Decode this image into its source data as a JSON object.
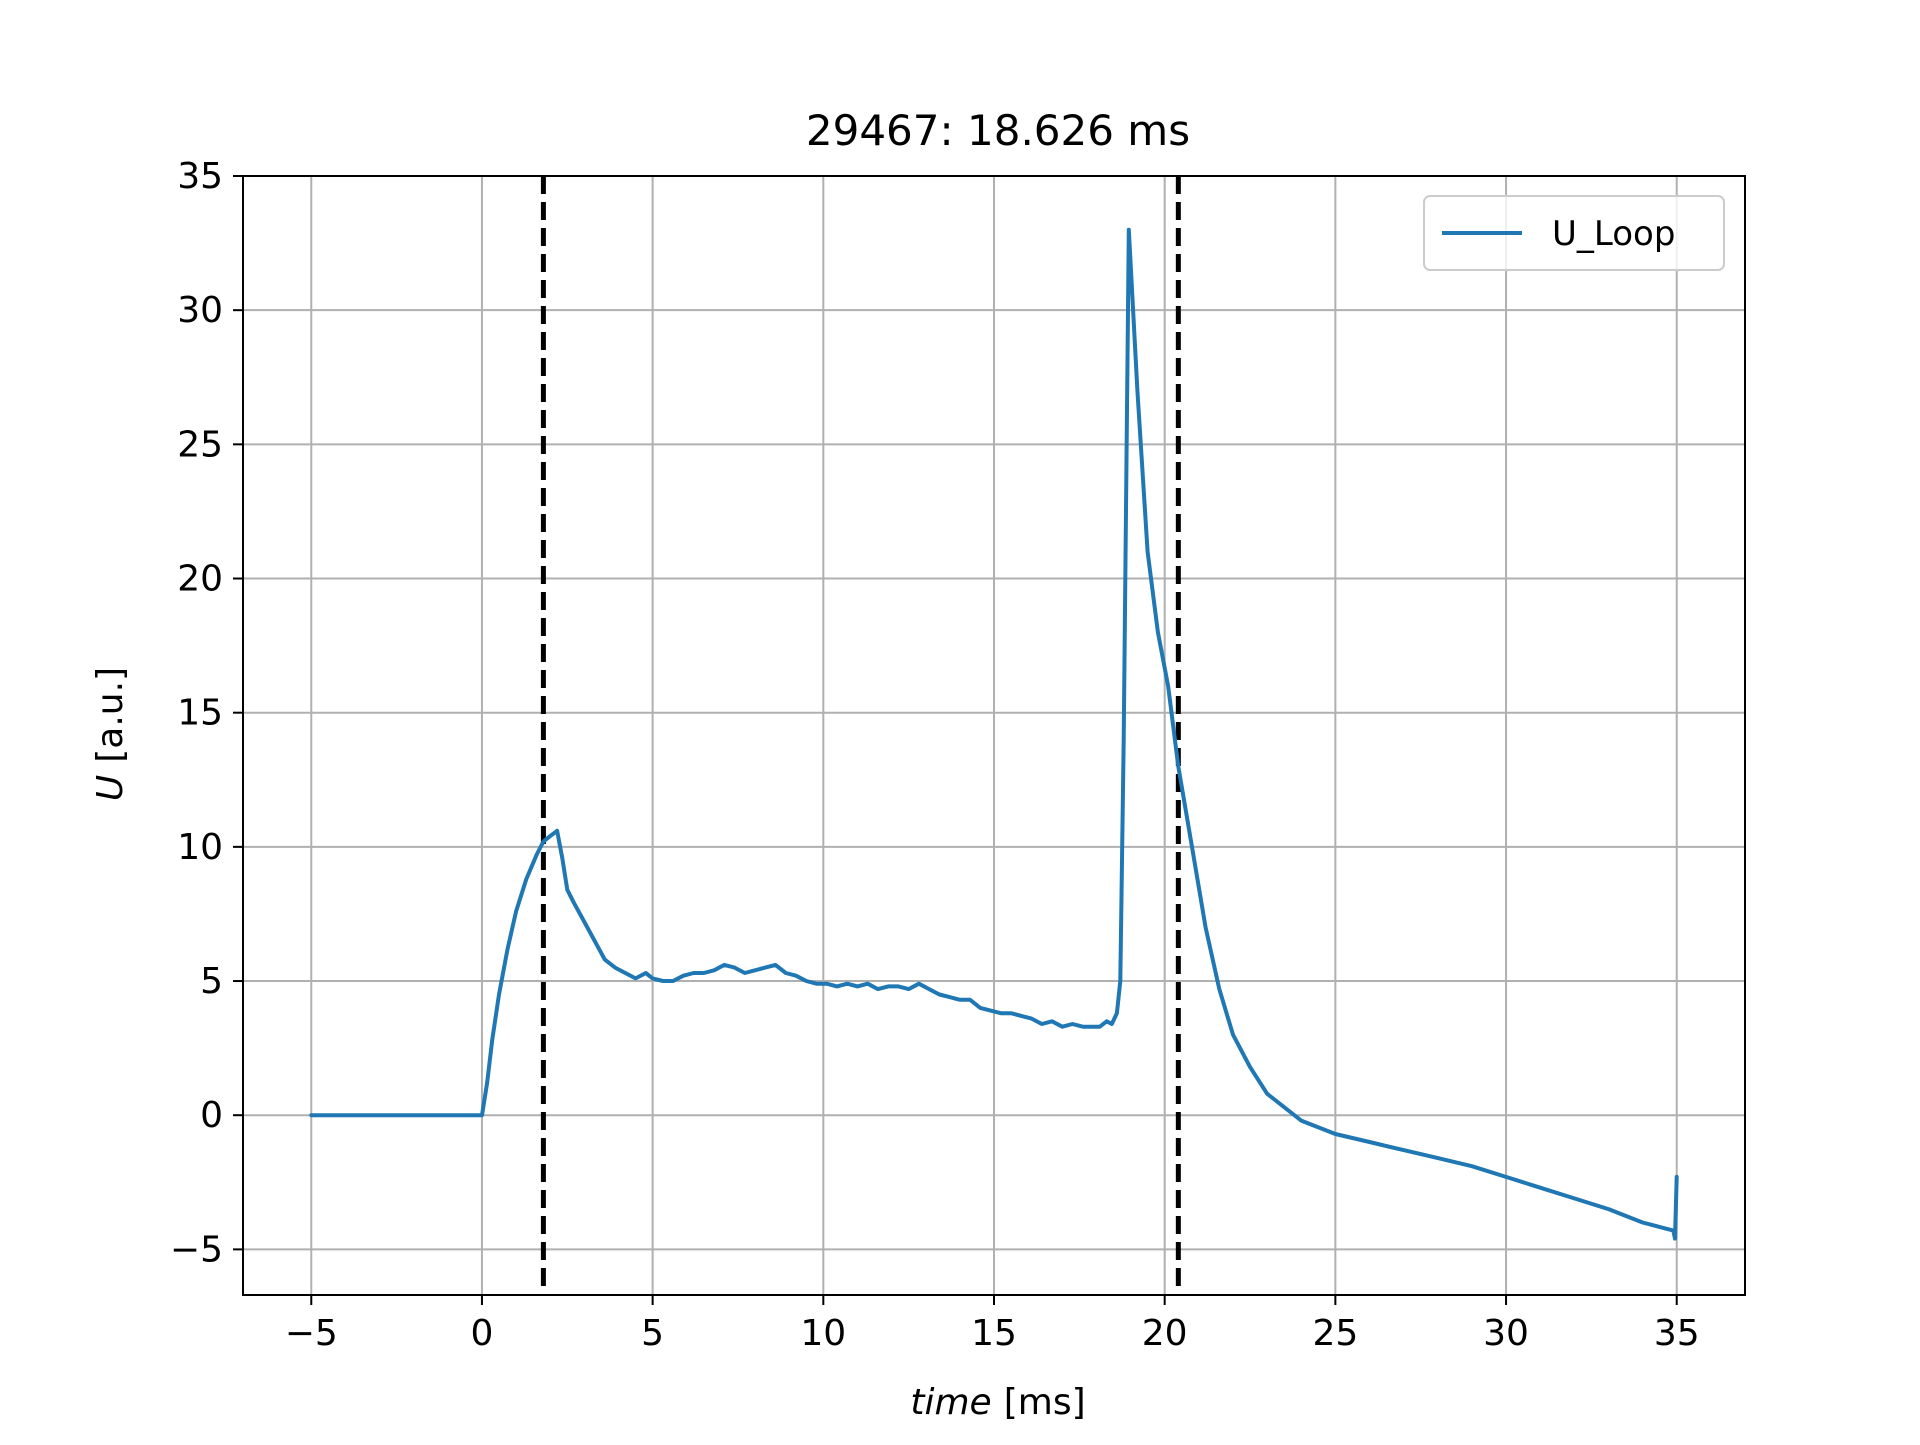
{
  "chart_data": {
    "type": "line",
    "title": "29467: 18.626 ms",
    "xlabel_italic": "time",
    "xlabel_unit": "[ms]",
    "ylabel_italic": "U",
    "ylabel_unit": "[a.u.]",
    "xlim": [
      -7,
      37
    ],
    "ylim": [
      -6.7,
      35
    ],
    "xticks": [
      -5,
      0,
      5,
      10,
      15,
      20,
      25,
      30,
      35
    ],
    "yticks": [
      -5,
      0,
      5,
      10,
      15,
      20,
      25,
      30,
      35
    ],
    "xtick_labels": [
      "−5",
      "0",
      "5",
      "10",
      "15",
      "20",
      "25",
      "30",
      "35"
    ],
    "ytick_labels": [
      "−5",
      "0",
      "5",
      "10",
      "15",
      "20",
      "25",
      "30",
      "35"
    ],
    "grid": true,
    "legend": {
      "position": "top-right",
      "entries": [
        "U_Loop"
      ]
    },
    "series": [
      {
        "name": "U_Loop",
        "color": "#1f77b4",
        "x": [
          -5,
          -2,
          0,
          0.15,
          0.3,
          0.5,
          0.75,
          1.0,
          1.3,
          1.6,
          1.8,
          2.0,
          2.2,
          2.35,
          2.5,
          2.7,
          3.0,
          3.3,
          3.6,
          3.9,
          4.2,
          4.5,
          4.8,
          5.0,
          5.3,
          5.6,
          5.9,
          6.2,
          6.5,
          6.8,
          7.1,
          7.4,
          7.7,
          8.0,
          8.3,
          8.6,
          8.9,
          9.2,
          9.5,
          9.8,
          10.1,
          10.4,
          10.7,
          11.0,
          11.3,
          11.6,
          11.9,
          12.2,
          12.5,
          12.8,
          13.1,
          13.4,
          13.7,
          14.0,
          14.3,
          14.6,
          14.9,
          15.2,
          15.5,
          15.8,
          16.1,
          16.4,
          16.7,
          17.0,
          17.3,
          17.6,
          17.9,
          18.1,
          18.3,
          18.45,
          18.6,
          18.7,
          18.8,
          18.95,
          19.2,
          19.5,
          19.8,
          20.1,
          20.4,
          20.8,
          21.2,
          21.6,
          22.0,
          22.5,
          23.0,
          24.0,
          25.0,
          26.0,
          27.0,
          28.0,
          29.0,
          30.0,
          31.0,
          32.0,
          33.0,
          34.0,
          34.9,
          34.95,
          35.0
        ],
        "y": [
          0,
          0,
          0,
          1.2,
          2.8,
          4.5,
          6.2,
          7.6,
          8.8,
          9.7,
          10.2,
          10.4,
          10.6,
          9.6,
          8.4,
          7.9,
          7.2,
          6.5,
          5.8,
          5.5,
          5.3,
          5.1,
          5.3,
          5.1,
          5.0,
          5.0,
          5.2,
          5.3,
          5.3,
          5.4,
          5.6,
          5.5,
          5.3,
          5.4,
          5.5,
          5.6,
          5.3,
          5.2,
          5.0,
          4.9,
          4.9,
          4.8,
          4.9,
          4.8,
          4.9,
          4.7,
          4.8,
          4.8,
          4.7,
          4.9,
          4.7,
          4.5,
          4.4,
          4.3,
          4.3,
          4.0,
          3.9,
          3.8,
          3.8,
          3.7,
          3.6,
          3.4,
          3.5,
          3.3,
          3.4,
          3.3,
          3.3,
          3.3,
          3.5,
          3.4,
          3.8,
          5.0,
          14.0,
          33.0,
          27.0,
          21.0,
          18.0,
          16.0,
          13.0,
          10.0,
          7.0,
          4.7,
          3.0,
          1.8,
          0.8,
          -0.2,
          -0.7,
          -1.0,
          -1.3,
          -1.6,
          -1.9,
          -2.3,
          -2.7,
          -3.1,
          -3.5,
          -4.0,
          -4.3,
          -4.6,
          -2.3
        ]
      }
    ],
    "vlines": [
      1.8,
      20.4
    ]
  }
}
